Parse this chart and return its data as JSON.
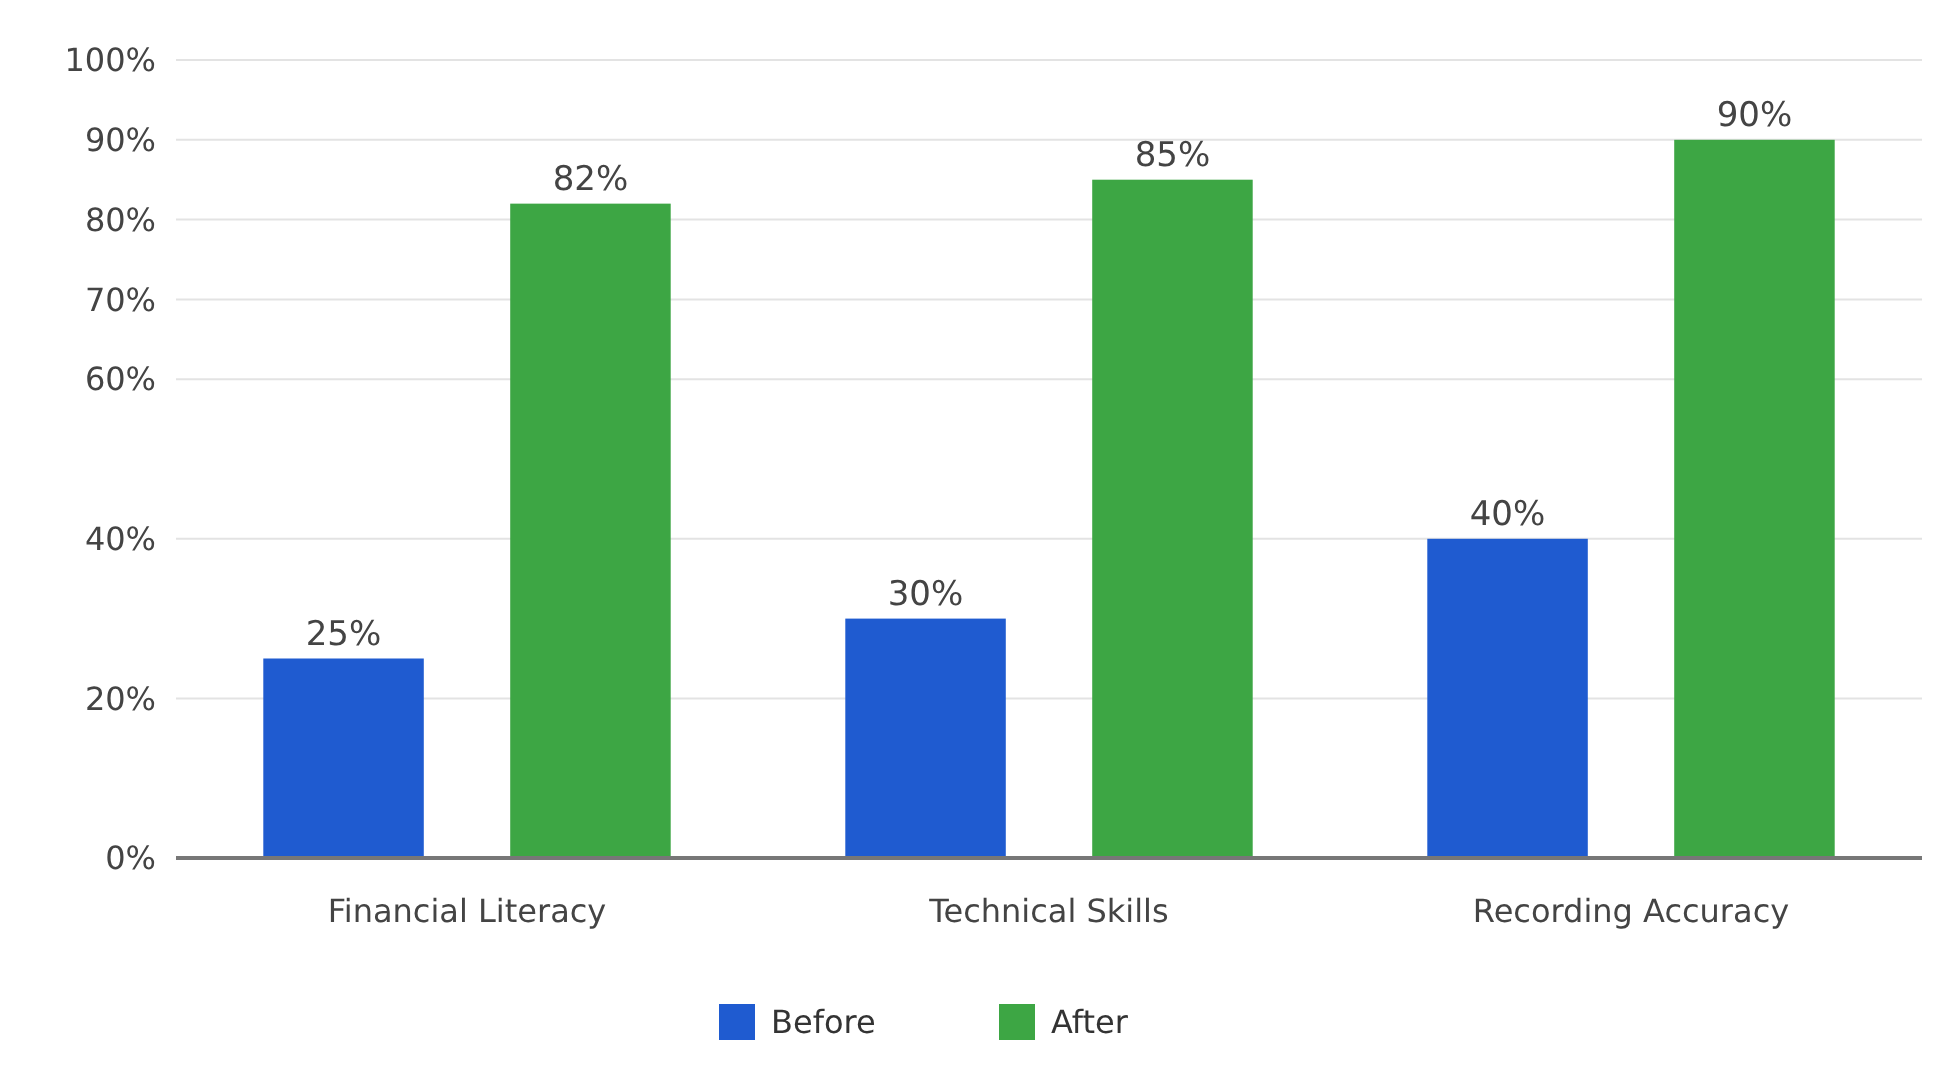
{
  "chart_data": {
    "type": "bar",
    "categories": [
      "Financial Literacy",
      "Technical Skills",
      "Recording Accuracy"
    ],
    "series": [
      {
        "name": "Before",
        "color": "#1f5bd0",
        "values": [
          25,
          30,
          40
        ]
      },
      {
        "name": "After",
        "color": "#3da644",
        "values": [
          82,
          85,
          90
        ]
      }
    ],
    "ylim": [
      0,
      100
    ],
    "yticks": [
      {
        "value": 0,
        "label": "0%"
      },
      {
        "value": 20,
        "label": "20%"
      },
      {
        "value": 40,
        "label": "40%"
      },
      {
        "value": 60,
        "label": "60%"
      },
      {
        "value": 70,
        "label": "70%"
      },
      {
        "value": 80,
        "label": "80%"
      },
      {
        "value": 90,
        "label": "90%"
      },
      {
        "value": 100,
        "label": "100%"
      }
    ],
    "value_labels": [
      [
        "25%",
        "30%",
        "40%"
      ],
      [
        "82%",
        "85%",
        "90%"
      ]
    ],
    "grid": "y",
    "legend": "bottom"
  }
}
